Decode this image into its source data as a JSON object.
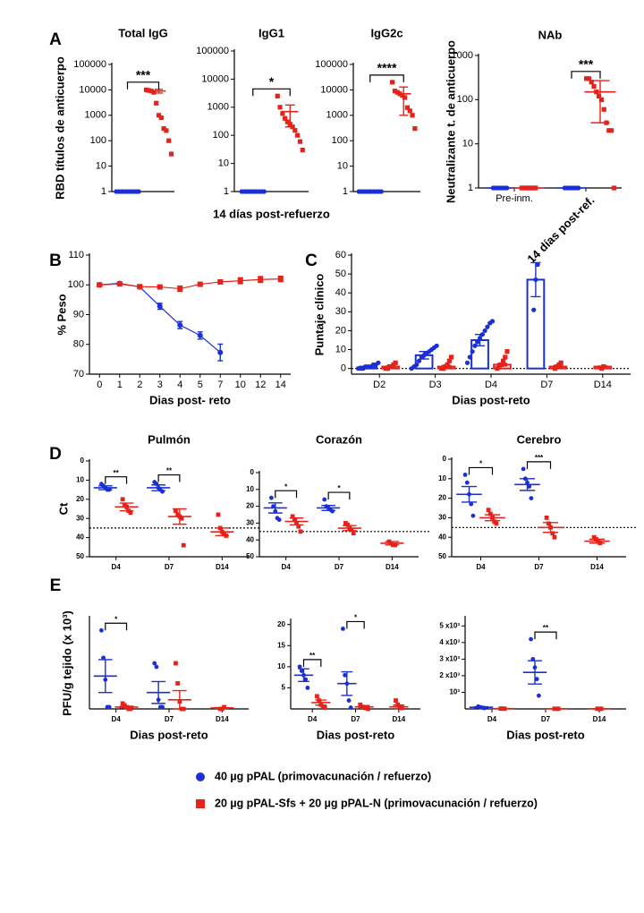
{
  "chart_data": [
    {
      "type": "dotplot",
      "panel_label": "A",
      "title": "Total IgG",
      "ylabel": "RBD títulos de anticuerpo",
      "categories": [
        null,
        null
      ],
      "log": true,
      "ylim": [
        1,
        100000
      ],
      "yticks": [
        1,
        10,
        100,
        1000,
        10000,
        100000
      ],
      "series": [
        {
          "color": "#1a2fd6",
          "marker": "circle",
          "values": [
            1,
            null
          ],
          "errors": [
            0,
            null
          ],
          "points": [
            [
              1,
              1,
              1,
              1,
              1,
              1,
              1,
              1,
              1,
              1
            ],
            []
          ]
        },
        {
          "color": "#e5231b",
          "marker": "square",
          "values": [
            null,
            9000
          ],
          "errors": [
            null,
            1500
          ],
          "points": [
            [],
            [
              10000,
              9500,
              9000,
              8000,
              3000,
              1000,
              800,
              300,
              250,
              100,
              30
            ]
          ]
        }
      ],
      "annotations": [
        {
          "text": "***"
        }
      ]
    },
    {
      "type": "dotplot",
      "title": "IgG1",
      "xlabel": "14 días post-refuerzo",
      "categories": [
        null,
        null
      ],
      "log": true,
      "ylim": [
        1,
        100000
      ],
      "yticks": [
        1,
        10,
        100,
        1000,
        10000,
        100000
      ],
      "series": [
        {
          "color": "#1a2fd6",
          "marker": "circle",
          "values": [
            1,
            null
          ],
          "errors": [
            0,
            null
          ],
          "points": [
            [
              1,
              1,
              1,
              1,
              1,
              1,
              1,
              1,
              1,
              1
            ],
            []
          ]
        },
        {
          "color": "#e5231b",
          "marker": "square",
          "values": [
            null,
            700
          ],
          "errors": [
            null,
            500
          ],
          "points": [
            [],
            [
              2500,
              1000,
              600,
              400,
              300,
              250,
              200,
              150,
              100,
              60,
              30
            ]
          ]
        }
      ],
      "annotations": [
        {
          "text": "*"
        }
      ]
    },
    {
      "type": "dotplot",
      "title": "IgG2c",
      "categories": [
        null,
        null
      ],
      "log": true,
      "ylim": [
        1,
        100000
      ],
      "yticks": [
        1,
        10,
        100,
        1000,
        10000,
        100000
      ],
      "series": [
        {
          "color": "#1a2fd6",
          "marker": "circle",
          "values": [
            1,
            null
          ],
          "errors": [
            0,
            null
          ],
          "points": [
            [
              1,
              1,
              1,
              1,
              1,
              1,
              1,
              1,
              1,
              1
            ],
            []
          ]
        },
        {
          "color": "#e5231b",
          "marker": "square",
          "values": [
            null,
            7000
          ],
          "errors": [
            null,
            6000
          ],
          "points": [
            [],
            [
              20000,
              9000,
              8000,
              7000,
              6000,
              5000,
              2000,
              1500,
              1000,
              300
            ]
          ]
        }
      ],
      "annotations": [
        {
          "text": "****"
        }
      ]
    },
    {
      "type": "dotplot",
      "title": "NAb",
      "ylabel": "Neutralizante t. de anticuerpo",
      "categories": [
        "Pre-inm.",
        "14 días post-ref."
      ],
      "log": true,
      "ylim": [
        1,
        1000
      ],
      "yticks": [
        1,
        10,
        100,
        1000
      ],
      "series": [
        {
          "color": "#1a2fd6",
          "marker": "circle",
          "values": [
            1,
            1
          ],
          "errors": [
            0,
            0
          ],
          "points": [
            [
              1,
              1,
              1,
              1,
              1,
              1,
              1,
              1
            ],
            [
              1,
              1,
              1,
              1,
              1,
              1,
              1,
              1
            ]
          ]
        },
        {
          "color": "#e5231b",
          "marker": "square",
          "values": [
            1,
            150
          ],
          "errors": [
            0,
            120
          ],
          "points": [
            [
              1,
              1,
              1,
              1,
              1,
              1,
              1,
              1
            ],
            [
              300,
              300,
              250,
              200,
              150,
              120,
              100,
              60,
              30,
              20,
              20,
              1
            ]
          ]
        }
      ],
      "annotations": [
        {
          "text": "***",
          "category": "14 días post-ref."
        }
      ]
    },
    {
      "type": "line",
      "panel_label": "B",
      "ylabel": "% Peso",
      "xlabel": "Dias post- reto",
      "categories": [
        "0",
        "1",
        "2",
        "3",
        "4",
        "5",
        "7",
        "10",
        "12",
        "14"
      ],
      "ylim": [
        70,
        110
      ],
      "yticks": [
        70,
        80,
        90,
        100,
        110
      ],
      "series": [
        {
          "color": "#1a2fd6",
          "marker": "circle",
          "values": [
            100,
            100.5,
            99.3,
            92.8,
            86.5,
            83,
            77.3,
            null,
            null,
            null
          ],
          "errors": [
            0.4,
            0.4,
            0.4,
            1,
            1.2,
            1.2,
            2.8,
            null,
            null,
            null
          ]
        },
        {
          "color": "#e5231b",
          "marker": "square",
          "values": [
            100,
            100.3,
            99.4,
            99.3,
            98.7,
            100.2,
            101,
            101.4,
            101.8,
            102
          ],
          "errors": [
            0.3,
            0.3,
            0.3,
            0.4,
            0.9,
            0.5,
            0.6,
            1,
            1,
            0.9
          ]
        }
      ]
    },
    {
      "type": "bar",
      "panel_label": "C",
      "ylabel": "Puntaje clínico",
      "xlabel": "Dias post-reto",
      "categories": [
        "D2",
        "D3",
        "D4",
        "D7",
        "D14"
      ],
      "ylim": [
        -3,
        60
      ],
      "yticks": [
        0,
        10,
        20,
        30,
        40,
        50,
        60
      ],
      "refline": 0,
      "series": [
        {
          "color": "#1a2fd6",
          "marker": "circle",
          "values": [
            1,
            7,
            15,
            47,
            null
          ],
          "errors": [
            0.5,
            2,
            3,
            9,
            null
          ],
          "points": [
            [
              0,
              0,
              0,
              1,
              1,
              1,
              2,
              2,
              3
            ],
            [
              0,
              1,
              2,
              4,
              6,
              7,
              8,
              9,
              10,
              11,
              12
            ],
            [
              3,
              6,
              9,
              12,
              14,
              16,
              18,
              20,
              22,
              24,
              25
            ],
            [
              31,
              47,
              55
            ],
            []
          ]
        },
        {
          "color": "#e5231b",
          "marker": "square",
          "values": [
            1,
            1,
            2,
            1,
            1
          ],
          "errors": [
            0.3,
            0.5,
            0.7,
            0.5,
            0.3
          ],
          "points": [
            [
              0,
              0,
              1,
              1,
              2,
              3
            ],
            [
              0,
              0,
              1,
              2,
              4,
              6
            ],
            [
              0,
              1,
              2,
              4,
              6,
              9
            ],
            [
              0,
              1,
              2,
              3
            ],
            [
              0,
              1
            ]
          ]
        }
      ]
    },
    {
      "type": "dotplot",
      "panel_label": "D",
      "title": "Pulmón",
      "ylabel": "Ct",
      "categories": [
        "D4",
        "D7",
        "D14"
      ],
      "ylim": [
        50,
        0
      ],
      "yticks": [
        0,
        10,
        20,
        30,
        40,
        50
      ],
      "refline": 35,
      "series": [
        {
          "color": "#1a2fd6",
          "marker": "circle",
          "values": [
            14,
            14,
            null
          ],
          "errors": [
            1,
            1.5,
            null
          ],
          "points": [
            [
              12,
              13,
              14,
              15,
              15
            ],
            [
              11,
              12,
              14,
              15,
              16
            ],
            []
          ]
        },
        {
          "color": "#e5231b",
          "marker": "square",
          "values": [
            24,
            29,
            37
          ],
          "errors": [
            2,
            4,
            2
          ],
          "points": [
            [
              20,
              23,
              24,
              26,
              27
            ],
            [
              26,
              28,
              29,
              30,
              44
            ],
            [
              28,
              35,
              37,
              38,
              39
            ]
          ]
        }
      ],
      "annotations": [
        {
          "text": "**",
          "category": "D4"
        },
        {
          "text": "**",
          "category": "D7"
        }
      ]
    },
    {
      "type": "dotplot",
      "title": "Corazón",
      "categories": [
        "D4",
        "D7",
        "D14"
      ],
      "ylim": [
        50,
        0
      ],
      "yticks": [
        0,
        10,
        20,
        30,
        40,
        50
      ],
      "refline": 35,
      "series": [
        {
          "color": "#1a2fd6",
          "marker": "circle",
          "values": [
            21,
            21,
            null
          ],
          "errors": [
            3,
            1.5,
            null
          ],
          "points": [
            [
              15,
              20,
              23,
              27,
              28
            ],
            [
              16,
              20,
              21,
              22,
              23
            ],
            []
          ]
        },
        {
          "color": "#e5231b",
          "marker": "square",
          "values": [
            29,
            33,
            42
          ],
          "errors": [
            2,
            1.5,
            1
          ],
          "points": [
            [
              26,
              28,
              30,
              32,
              35
            ],
            [
              30,
              31,
              33,
              34,
              36
            ],
            [
              41,
              42,
              43,
              43
            ]
          ]
        }
      ],
      "annotations": [
        {
          "text": "*",
          "category": "D4"
        },
        {
          "text": "*",
          "category": "D7"
        }
      ]
    },
    {
      "type": "dotplot",
      "title": "Cerebro",
      "categories": [
        "D4",
        "D7",
        "D14"
      ],
      "ylim": [
        50,
        0
      ],
      "yticks": [
        0,
        10,
        20,
        30,
        40,
        50
      ],
      "refline": 35,
      "series": [
        {
          "color": "#1a2fd6",
          "marker": "circle",
          "values": [
            18,
            13,
            null
          ],
          "errors": [
            4,
            3,
            null
          ],
          "points": [
            [
              8,
              12,
              18,
              23,
              29
            ],
            [
              5,
              10,
              12,
              14,
              20
            ],
            []
          ]
        },
        {
          "color": "#e5231b",
          "marker": "square",
          "values": [
            30,
            35,
            42
          ],
          "errors": [
            1.5,
            2.5,
            1
          ],
          "points": [
            [
              26,
              28,
              30,
              32,
              33
            ],
            [
              30,
              33,
              35,
              38,
              40
            ],
            [
              40,
              41,
              42,
              43
            ]
          ]
        }
      ],
      "annotations": [
        {
          "text": "*",
          "category": "D4"
        },
        {
          "text": "***",
          "category": "D7"
        }
      ]
    },
    {
      "type": "dotplot",
      "panel_label": "E",
      "ylabel": "PFU/g tejido (x 10³)",
      "xlabel": "Dias post-reto",
      "categories": [
        "D4",
        "D7",
        "D14"
      ],
      "ylim": [
        0,
        5
      ],
      "series": [
        {
          "color": "#1a2fd6",
          "marker": "circle",
          "values": [
            1.8,
            0.9,
            null
          ],
          "errors": [
            0.9,
            0.6,
            null
          ],
          "points": [
            [
              4.3,
              2.8,
              1.6,
              0.1,
              0.1
            ],
            [
              2.5,
              2.3,
              0.5,
              0.1,
              0.1
            ],
            []
          ]
        },
        {
          "color": "#e5231b",
          "marker": "square",
          "values": [
            0.1,
            0.5,
            0.05
          ],
          "errors": [
            0.05,
            0.5,
            0.02
          ],
          "points": [
            [
              0.3,
              0.2,
              0.1,
              0,
              0
            ],
            [
              2.5,
              1.4,
              0.4,
              0,
              0
            ],
            [
              0,
              0,
              0.1
            ]
          ]
        }
      ],
      "annotations": [
        {
          "text": "*",
          "category": "D4"
        }
      ]
    },
    {
      "type": "dotplot",
      "xlabel": "Dias post-reto",
      "categories": [
        "D4",
        "D7",
        "D14"
      ],
      "ylim": [
        0,
        21
      ],
      "yticks": [
        5,
        10,
        15,
        20
      ],
      "series": [
        {
          "color": "#1a2fd6",
          "marker": "circle",
          "values": [
            8,
            6,
            null
          ],
          "errors": [
            1.5,
            2.8,
            null
          ],
          "points": [
            [
              10,
              9,
              8,
              7,
              5
            ],
            [
              19,
              8,
              6,
              2,
              0.3
            ],
            []
          ]
        },
        {
          "color": "#e5231b",
          "marker": "square",
          "values": [
            1.5,
            0.5,
            0.5
          ],
          "errors": [
            0.6,
            0.3,
            0.4
          ],
          "points": [
            [
              3,
              2,
              1,
              0.5,
              0.3
            ],
            [
              1,
              0.5,
              0.3,
              0.2,
              0
            ],
            [
              2,
              1,
              0.5,
              0.2
            ]
          ]
        }
      ],
      "annotations": [
        {
          "text": "**",
          "category": "D4"
        },
        {
          "text": "*",
          "category": "D7"
        }
      ]
    },
    {
      "type": "dotplot",
      "xlabel": "Dias post-reto",
      "categories": [
        "D4",
        "D7",
        "D14"
      ],
      "ylim": [
        0,
        5500
      ],
      "yticks": [
        {
          "value": 1000,
          "label": "10³"
        },
        {
          "value": 2000,
          "label": "2 x10³"
        },
        {
          "value": 3000,
          "label": "3 x10³"
        },
        {
          "value": 4000,
          "label": "4 x10³"
        },
        {
          "value": 5000,
          "label": "5 x10³"
        }
      ],
      "series": [
        {
          "color": "#1a2fd6",
          "marker": "circle",
          "values": [
            100,
            2200,
            null
          ],
          "errors": [
            30,
            700,
            null
          ],
          "points": [
            [
              150,
              100,
              80,
              50
            ],
            [
              4200,
              3000,
              2500,
              1800,
              800
            ],
            []
          ]
        },
        {
          "color": "#e5231b",
          "marker": "square",
          "values": [
            20,
            10,
            10
          ],
          "errors": [
            5,
            5,
            5
          ],
          "points": [
            [
              20,
              20,
              10
            ],
            [
              10,
              10,
              10
            ],
            [
              10,
              10,
              10
            ]
          ]
        }
      ],
      "annotations": [
        {
          "text": "**",
          "category": "D7"
        }
      ]
    }
  ],
  "legend": [
    {
      "name": "40 µg pPAL (primovacunación / refuerzo)",
      "color": "#1a2fd6",
      "marker": "circle"
    },
    {
      "name": "20 µg pPAL-Sfs + 20 µg pPAL-N (primovacunación / refuerzo)",
      "color": "#e5231b",
      "marker": "square"
    }
  ]
}
